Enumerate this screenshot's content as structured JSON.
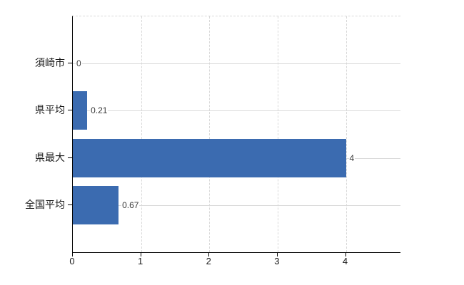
{
  "chart_data": {
    "type": "bar",
    "orientation": "horizontal",
    "title": "",
    "xlabel": "",
    "ylabel": "",
    "categories": [
      "須崎市",
      "県平均",
      "県最大",
      "全国平均"
    ],
    "values": [
      0,
      0.21,
      4,
      0.67
    ],
    "value_labels": [
      "0",
      "0.21",
      "4",
      "0.67"
    ],
    "xticks": [
      "0",
      "1",
      "2",
      "3",
      "4"
    ],
    "xtick_values": [
      0,
      1,
      2,
      3,
      4
    ],
    "xlim": [
      0,
      4.8
    ],
    "grid": true,
    "legend": "none",
    "colors": {
      "bar": "#3b6bb0",
      "gridline": "#d9d9d9",
      "axis": "#000000",
      "category_text": "#1a1a1a",
      "value_text": "#3a3a3a",
      "background": "#ffffff"
    }
  }
}
